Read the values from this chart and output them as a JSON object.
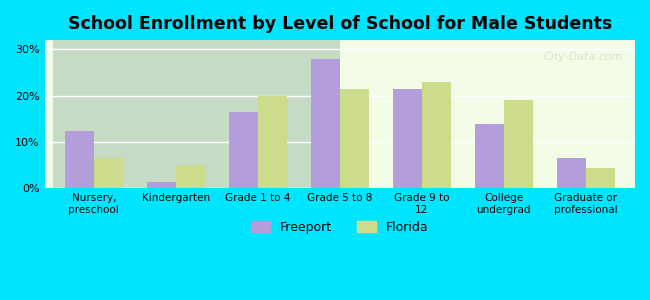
{
  "title": "School Enrollment by Level of School for Male Students",
  "categories": [
    "Nursery,\npreschool",
    "Kindergarten",
    "Grade 1 to 4",
    "Grade 5 to 8",
    "Grade 9 to\n12",
    "College\nundergrad",
    "Graduate or\nprofessional"
  ],
  "freeport_values": [
    12.5,
    1.5,
    16.5,
    28.0,
    21.5,
    14.0,
    6.5
  ],
  "florida_values": [
    6.5,
    5.0,
    20.0,
    21.5,
    23.0,
    19.0,
    4.5
  ],
  "freeport_color": "#b39ddb",
  "florida_color": "#cddc8a",
  "background_color": "#00e5ff",
  "plot_bg_start": "#f0fce8",
  "plot_bg_end": "#ffffff",
  "yticks": [
    0,
    10,
    20,
    30
  ],
  "ylim": [
    0,
    32
  ],
  "ylabel_format": "%",
  "legend_labels": [
    "Freeport",
    "Florida"
  ],
  "watermark": "City-Data.com",
  "bar_width": 0.35
}
